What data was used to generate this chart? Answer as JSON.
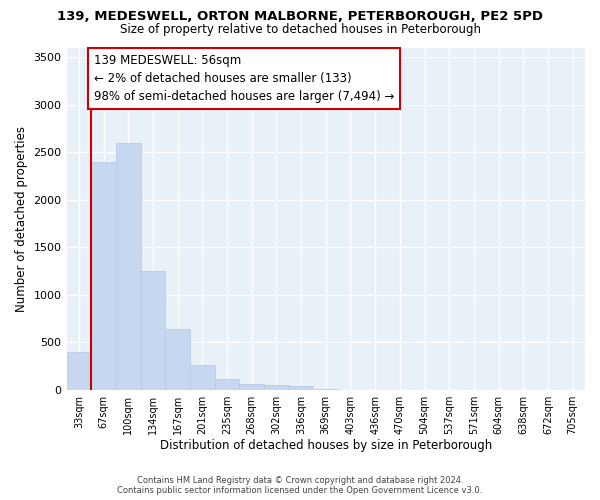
{
  "title_line1": "139, MEDESWELL, ORTON MALBORNE, PETERBOROUGH, PE2 5PD",
  "title_line2": "Size of property relative to detached houses in Peterborough",
  "xlabel": "Distribution of detached houses by size in Peterborough",
  "ylabel": "Number of detached properties",
  "categories": [
    "33sqm",
    "67sqm",
    "100sqm",
    "134sqm",
    "167sqm",
    "201sqm",
    "235sqm",
    "268sqm",
    "302sqm",
    "336sqm",
    "369sqm",
    "403sqm",
    "436sqm",
    "470sqm",
    "504sqm",
    "537sqm",
    "571sqm",
    "604sqm",
    "638sqm",
    "672sqm",
    "705sqm"
  ],
  "values": [
    400,
    2400,
    2600,
    1250,
    640,
    260,
    110,
    60,
    50,
    40,
    5,
    0,
    0,
    0,
    0,
    0,
    0,
    0,
    0,
    0,
    0
  ],
  "bar_color": "#c5d8f0",
  "bar_edge_color": "#b0c8e8",
  "vline_color": "#cc0000",
  "annotation_text": "139 MEDESWELL: 56sqm\n← 2% of detached houses are smaller (133)\n98% of semi-detached houses are larger (7,494) →",
  "annotation_box_bg": "#ffffff",
  "annotation_box_edge": "#cc0000",
  "ylim": [
    0,
    3600
  ],
  "yticks": [
    0,
    500,
    1000,
    1500,
    2000,
    2500,
    3000,
    3500
  ],
  "fig_bg_color": "#ffffff",
  "plot_bg_color": "#e8f0f8",
  "grid_color": "#ffffff",
  "footer_line1": "Contains HM Land Registry data © Crown copyright and database right 2024.",
  "footer_line2": "Contains public sector information licensed under the Open Government Licence v3.0."
}
